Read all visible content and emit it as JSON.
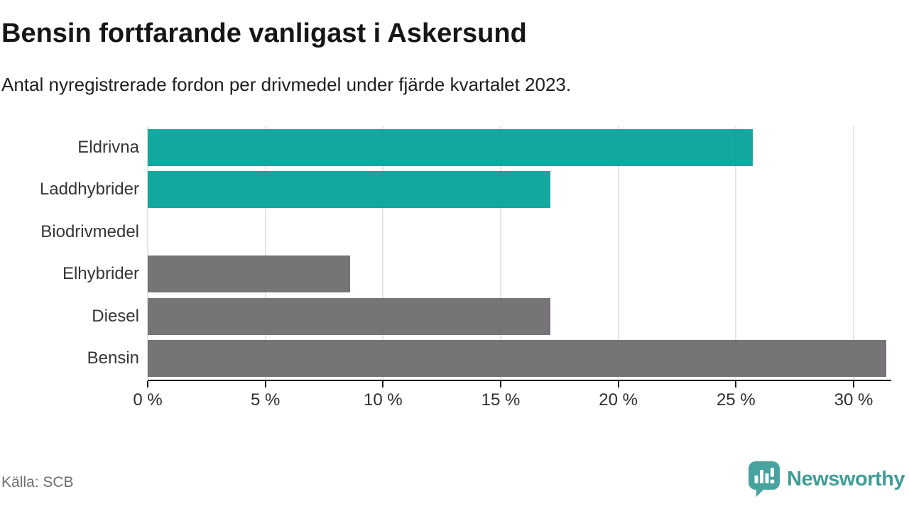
{
  "header": {
    "title": "Bensin fortfarande vanligast i Askersund",
    "subtitle": "Antal nyregistrerade fordon per drivmedel under fjärde kvartalet 2023."
  },
  "chart_data": {
    "type": "bar",
    "orientation": "horizontal",
    "title": "Bensin fortfarande vanligast i Askersund",
    "subtitle": "Antal nyregistrerade fordon per drivmedel under fjärde kvartalet 2023.",
    "categories": [
      "Eldrivna",
      "Laddhybrider",
      "Biodrivmedel",
      "Elhybrider",
      "Diesel",
      "Bensin"
    ],
    "values": [
      25.7,
      17.1,
      0,
      8.6,
      17.1,
      31.4
    ],
    "unit": "%",
    "bar_colors": [
      "#00a099",
      "#00a099",
      "#6c696d",
      "#6c696d",
      "#6c696d",
      "#6c696d"
    ],
    "highlight_color": "#00a099",
    "base_color": "#6c696d",
    "xlim": [
      0,
      31.6
    ],
    "x_ticks": [
      0,
      5,
      10,
      15,
      20,
      25,
      30
    ],
    "x_tick_labels": [
      "0 %",
      "5 %",
      "10 %",
      "15 %",
      "20 %",
      "25 %",
      "30 %"
    ],
    "grid": true,
    "gridline_color": "#e4e4e4",
    "legend": "none"
  },
  "footer": {
    "source": "Källa: SCB",
    "brand": "Newsworthy",
    "brand_color": "#3f9d98",
    "icon_color": "#47a3a0"
  }
}
